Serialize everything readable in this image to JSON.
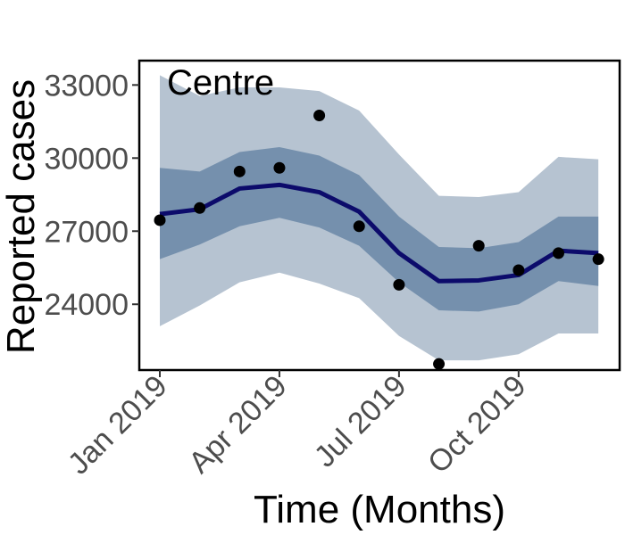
{
  "chart_data": {
    "type": "line",
    "title": "Centre",
    "xlabel": "Time (Months)",
    "ylabel": "Reported cases",
    "x": [
      "2019-01",
      "2019-02",
      "2019-03",
      "2019-04",
      "2019-05",
      "2019-06",
      "2019-07",
      "2019-08",
      "2019-09",
      "2019-10",
      "2019-11",
      "2019-12"
    ],
    "x_tick_labels": [
      {
        "x": "2019-01",
        "label": "Jan 2019"
      },
      {
        "x": "2019-04",
        "label": "Apr 2019"
      },
      {
        "x": "2019-07",
        "label": "Jul 2019"
      },
      {
        "x": "2019-10",
        "label": "Oct 2019"
      }
    ],
    "y_ticks": [
      24000,
      27000,
      30000,
      33000
    ],
    "y_tick_labels": [
      "24000",
      "27000",
      "30000",
      "33000"
    ],
    "ylim": [
      21300,
      34000
    ],
    "grid": false,
    "series": [
      {
        "role": "outer_band_lower",
        "values": [
          23100,
          23950,
          24900,
          25300,
          24850,
          24250,
          22700,
          21700,
          21700,
          21950,
          22800,
          22800
        ]
      },
      {
        "role": "outer_band_upper",
        "values": [
          33400,
          32550,
          32900,
          32900,
          32750,
          31950,
          30150,
          28450,
          28400,
          28600,
          30050,
          29950
        ]
      },
      {
        "role": "inner_band_lower",
        "values": [
          25850,
          26450,
          27200,
          27550,
          27150,
          26400,
          24900,
          23750,
          23700,
          24000,
          24950,
          24750
        ]
      },
      {
        "role": "inner_band_upper",
        "values": [
          29600,
          29450,
          30250,
          30450,
          30100,
          29300,
          27600,
          26350,
          26300,
          26550,
          27600,
          27600
        ]
      },
      {
        "role": "median_line",
        "values": [
          27700,
          27900,
          28750,
          28900,
          28600,
          27800,
          26100,
          24950,
          24980,
          25200,
          26200,
          26100
        ]
      },
      {
        "role": "observed_points",
        "values": [
          27450,
          27950,
          29450,
          29600,
          31750,
          27200,
          24800,
          21550,
          26400,
          25400,
          26100,
          25850
        ]
      }
    ],
    "colors": {
      "outer_band": "#b6c3d1",
      "inner_band": "#7590ad",
      "median_line": "#0c0b6b",
      "points": "#000000",
      "axis": "#000000"
    }
  }
}
